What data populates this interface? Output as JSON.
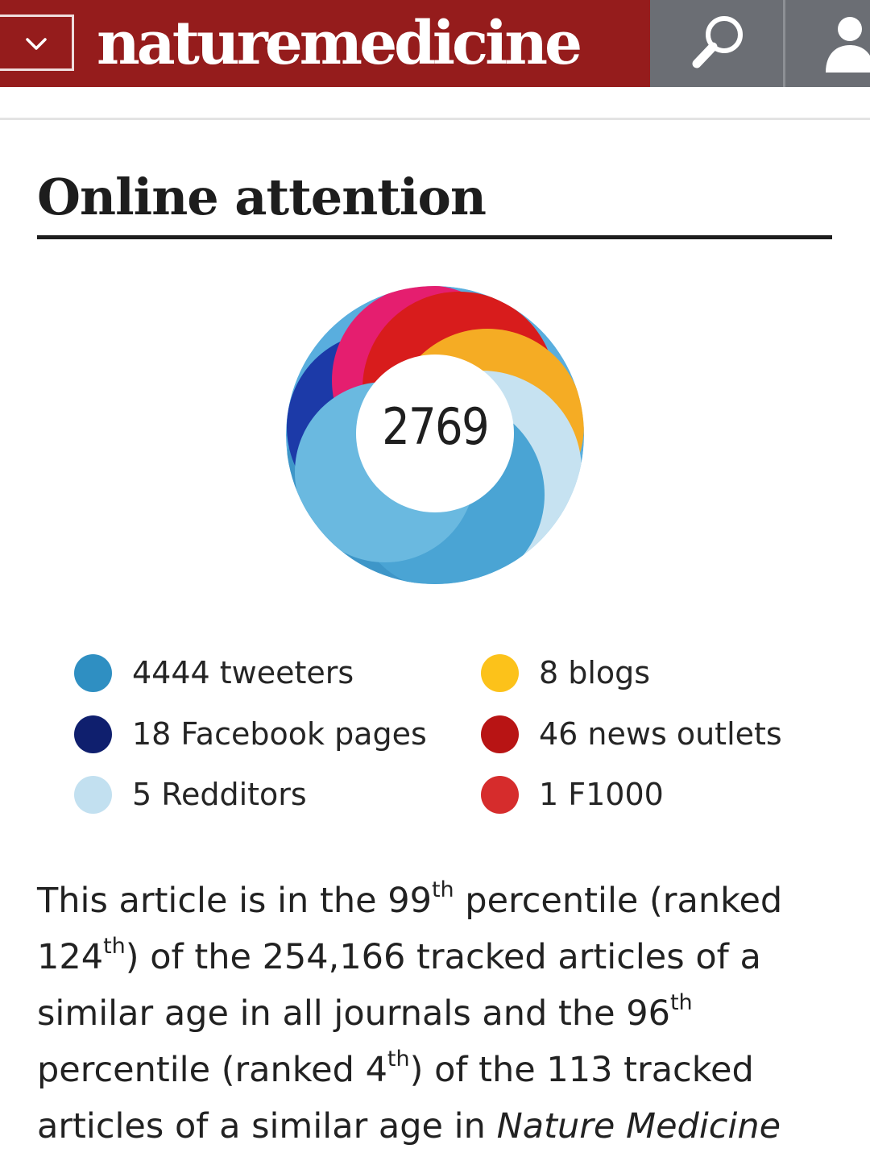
{
  "header": {
    "brand": "naturemedicine",
    "colors": {
      "bar": "#951c1c",
      "buttons": "#6b6e74"
    },
    "icons": {
      "menu": "chevron-down-icon",
      "search": "search-icon",
      "account": "user-icon"
    }
  },
  "section": {
    "title": "Online attention"
  },
  "attention": {
    "score": "2769",
    "legend": [
      {
        "label": "4444 tweeters",
        "color": "#2f8fc2"
      },
      {
        "label": "18 Facebook pages",
        "color": "#0f1f6e"
      },
      {
        "label": "5 Redditors",
        "color": "#c2e0f0"
      },
      {
        "label": "8 blogs",
        "color": "#fcc21a"
      },
      {
        "label": "46 news outlets",
        "color": "#b81414"
      },
      {
        "label": "1 F1000",
        "color": "#d62c2c"
      }
    ]
  },
  "summary": {
    "part1": "This article is in the ",
    "pct_all": "99",
    "sup1": "th",
    "part2": " percentile (ranked ",
    "rank_all": "124",
    "sup2": "th",
    "part3": ") of the 254,166 tracked articles of a similar age in all journals and the ",
    "pct_journal": "96",
    "sup3": "th",
    "part4": " percentile (ranked ",
    "rank_journal": "4",
    "sup4": "th",
    "part5": ") of the 113 tracked articles of a similar age in ",
    "journal": "Nature Medicine"
  }
}
